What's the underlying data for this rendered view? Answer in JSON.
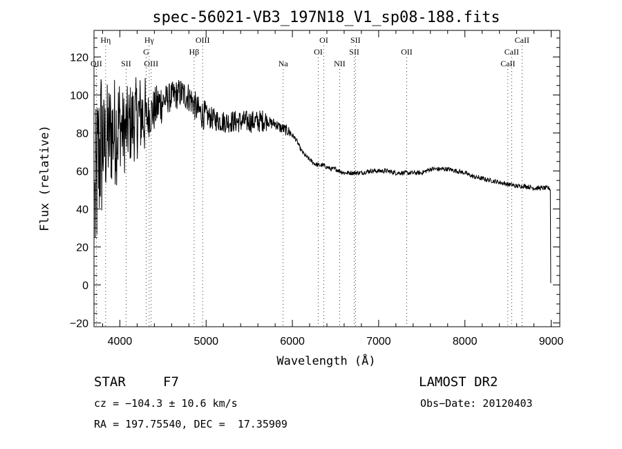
{
  "chart_data": {
    "type": "line",
    "title": "spec-56021-VB3_197N18_V1_sp08-188.fits",
    "xlabel": "Wavelength (Å)",
    "ylabel": "Flux (relative)",
    "xlim": [
      3700,
      9100
    ],
    "ylim": [
      -22,
      134
    ],
    "xticks": [
      4000,
      5000,
      6000,
      7000,
      8000,
      9000
    ],
    "yticks": [
      -20,
      0,
      20,
      40,
      60,
      80,
      100,
      120
    ],
    "grid": false,
    "series": [
      {
        "anchors": [
          [
            3710,
            40
          ],
          [
            3740,
            60
          ],
          [
            3780,
            75
          ],
          [
            3820,
            72
          ],
          [
            3860,
            78
          ],
          [
            3900,
            80
          ],
          [
            3960,
            82
          ],
          [
            4000,
            84
          ],
          [
            4050,
            80
          ],
          [
            4100,
            84
          ],
          [
            4150,
            86
          ],
          [
            4200,
            88
          ],
          [
            4250,
            90
          ],
          [
            4300,
            88
          ],
          [
            4350,
            90
          ],
          [
            4400,
            92
          ],
          [
            4450,
            95
          ],
          [
            4500,
            97
          ],
          [
            4550,
            98
          ],
          [
            4600,
            99
          ],
          [
            4650,
            100
          ],
          [
            4700,
            101
          ],
          [
            4750,
            100
          ],
          [
            4800,
            99
          ],
          [
            4850,
            96
          ],
          [
            4900,
            92
          ],
          [
            4950,
            90
          ],
          [
            5000,
            89
          ],
          [
            5100,
            87
          ],
          [
            5200,
            86
          ],
          [
            5300,
            86
          ],
          [
            5400,
            86
          ],
          [
            5500,
            86
          ],
          [
            5600,
            86
          ],
          [
            5700,
            87
          ],
          [
            5750,
            85
          ],
          [
            5800,
            85
          ],
          [
            5850,
            83
          ],
          [
            5900,
            82
          ],
          [
            5950,
            81
          ],
          [
            6000,
            79
          ],
          [
            6050,
            76
          ],
          [
            6100,
            71
          ],
          [
            6150,
            68
          ],
          [
            6200,
            66
          ],
          [
            6250,
            64
          ],
          [
            6300,
            63
          ],
          [
            6350,
            63
          ],
          [
            6400,
            62
          ],
          [
            6450,
            61
          ],
          [
            6500,
            61
          ],
          [
            6550,
            60
          ],
          [
            6600,
            59
          ],
          [
            6700,
            59
          ],
          [
            6800,
            59
          ],
          [
            6900,
            60
          ],
          [
            7000,
            60
          ],
          [
            7100,
            60
          ],
          [
            7200,
            59
          ],
          [
            7300,
            59
          ],
          [
            7400,
            59
          ],
          [
            7500,
            59
          ],
          [
            7550,
            60
          ],
          [
            7600,
            61
          ],
          [
            7700,
            61
          ],
          [
            7800,
            61
          ],
          [
            7900,
            60
          ],
          [
            8000,
            59
          ],
          [
            8100,
            57
          ],
          [
            8200,
            56
          ],
          [
            8300,
            55
          ],
          [
            8400,
            54
          ],
          [
            8500,
            53
          ],
          [
            8600,
            52
          ],
          [
            8700,
            52
          ],
          [
            8800,
            51
          ],
          [
            8900,
            51
          ],
          [
            8980,
            51
          ],
          [
            8990,
            50
          ],
          [
            8995,
            1
          ]
        ]
      }
    ],
    "lines": [
      {
        "label": "Hη",
        "x": 3835,
        "row": 0
      },
      {
        "label": "OII",
        "x": 3727,
        "row": 2
      },
      {
        "label": "SII",
        "x": 4072,
        "row": 2
      },
      {
        "label": "Hγ",
        "x": 4340,
        "row": 0
      },
      {
        "label": "G",
        "x": 4305,
        "row": 1
      },
      {
        "label": "OIII",
        "x": 4363,
        "row": 2
      },
      {
        "label": "OIII",
        "x": 4959,
        "row": 0
      },
      {
        "label": "Hβ",
        "x": 4861,
        "row": 1
      },
      {
        "label": "Na",
        "x": 5893,
        "row": 2
      },
      {
        "label": "OI",
        "x": 6364,
        "row": 0
      },
      {
        "label": "OI",
        "x": 6300,
        "row": 1
      },
      {
        "label": "NII",
        "x": 6548,
        "row": 2
      },
      {
        "label": "SII",
        "x": 6731,
        "row": 0
      },
      {
        "label": "SII",
        "x": 6717,
        "row": 1
      },
      {
        "label": "OII",
        "x": 7325,
        "row": 1
      },
      {
        "label": "CaII",
        "x": 8662,
        "row": 0
      },
      {
        "label": "CaII",
        "x": 8542,
        "row": 1
      },
      {
        "label": "CaII",
        "x": 8498,
        "row": 2
      }
    ]
  },
  "info": {
    "object_class": "STAR",
    "subclass": "F7",
    "survey": "LAMOST DR2",
    "cz": "cz = −104.3 ± 10.6 km/s",
    "obs_date": "Obs−Date: 20120403",
    "coords": "RA = 197.75540, DEC =  17.35909"
  }
}
